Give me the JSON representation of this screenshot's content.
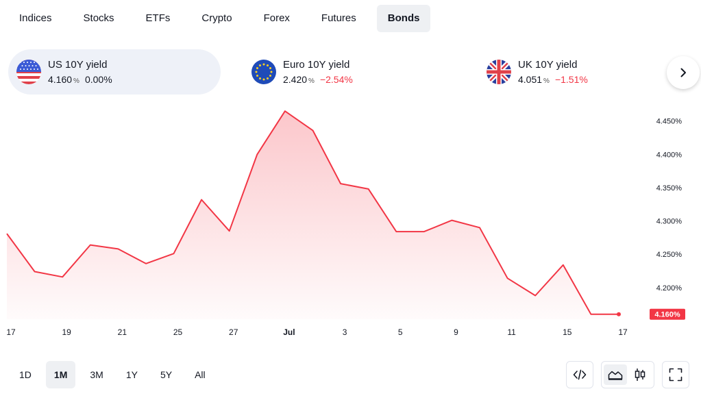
{
  "tabs": [
    {
      "label": "Indices",
      "active": false
    },
    {
      "label": "Stocks",
      "active": false
    },
    {
      "label": "ETFs",
      "active": false
    },
    {
      "label": "Crypto",
      "active": false
    },
    {
      "label": "Forex",
      "active": false
    },
    {
      "label": "Futures",
      "active": false
    },
    {
      "label": "Bonds",
      "active": true
    }
  ],
  "cards": [
    {
      "name": "US 10Y yield",
      "value": "4.160",
      "unit": "%",
      "change": "0.00%",
      "flag": "us-flag-icon",
      "active": true
    },
    {
      "name": "Euro 10Y yield",
      "value": "2.420",
      "unit": "%",
      "change": "−2.54%",
      "flag": "eu-flag-icon",
      "active": false
    },
    {
      "name": "UK 10Y yield",
      "value": "4.051",
      "unit": "%",
      "change": "−1.51%",
      "flag": "uk-flag-icon",
      "active": false
    }
  ],
  "next_icon": "chevron-right-icon",
  "chart_data": {
    "type": "area",
    "x": [
      "Jun 17",
      "Jun 18",
      "Jun 19",
      "Jun 20",
      "Jun 21",
      "Jun 24",
      "Jun 25",
      "Jun 26",
      "Jun 27",
      "Jun 28",
      "Jul 1",
      "Jul 2",
      "Jul 3",
      "Jul 5",
      "Jul 5",
      "Jul 8",
      "Jul 9",
      "Jul 10",
      "Jul 11",
      "Jul 12",
      "Jul 15",
      "Jul 16",
      "Jul 17"
    ],
    "values": [
      4.281,
      4.224,
      4.216,
      4.264,
      4.258,
      4.236,
      4.251,
      4.332,
      4.285,
      4.4,
      4.465,
      4.436,
      4.356,
      4.348,
      4.284,
      4.284,
      4.301,
      4.29,
      4.214,
      4.188,
      4.234,
      4.16,
      4.16
    ],
    "x_tick_labels": [
      "17",
      "19",
      "21",
      "25",
      "27",
      "Jul",
      "3",
      "5",
      "9",
      "11",
      "15",
      "17"
    ],
    "y_tick_labels": [
      "4.450%",
      "4.400%",
      "4.350%",
      "4.300%",
      "4.250%",
      "4.200%"
    ],
    "y_ticks": [
      4.45,
      4.4,
      4.35,
      4.3,
      4.25,
      4.2
    ],
    "ylim": [
      4.1525,
      4.4775
    ],
    "last_value_label": "4.160%",
    "line_color": "#f23645",
    "fill_color": "#f23645",
    "grid": false
  },
  "ranges": [
    {
      "label": "1D",
      "active": false
    },
    {
      "label": "1M",
      "active": true
    },
    {
      "label": "3M",
      "active": false
    },
    {
      "label": "1Y",
      "active": false
    },
    {
      "label": "5Y",
      "active": false
    },
    {
      "label": "All",
      "active": false
    }
  ],
  "tools": {
    "embed": "embed-code-icon",
    "area": "area-chart-icon",
    "candles": "candlestick-chart-icon",
    "fullscreen": "fullscreen-icon"
  }
}
